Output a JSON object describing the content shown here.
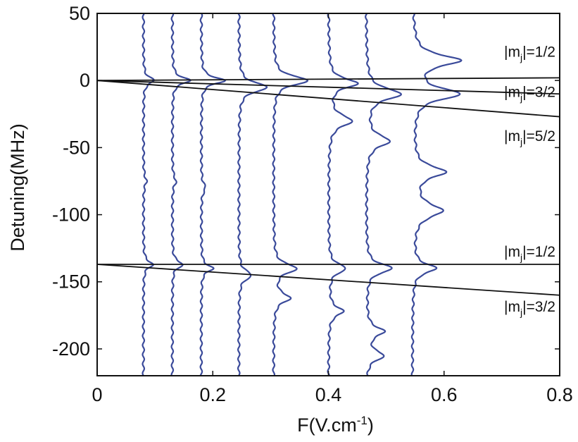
{
  "chart_data": {
    "type": "line",
    "title": "",
    "xlabel": "F(V.cm",
    "xlabel_sup": "-1",
    "xlabel_end": ")",
    "ylabel": "Detuning(MHz)",
    "xlim": [
      0,
      0.8
    ],
    "ylim": [
      -220,
      50
    ],
    "xticks": [
      "0",
      "0.2",
      "0.4",
      "0.6",
      "0.8"
    ],
    "yticks": [
      "50",
      "0",
      "-50",
      "-100",
      "-150",
      "-200"
    ],
    "grid": false,
    "trace_color": "#3a4a9a",
    "level_color": "#111111",
    "spectra": [
      {
        "baseline": 0.08,
        "peaks": [
          [
            0,
            0.018,
            3
          ],
          [
            -75,
            0.005,
            4
          ],
          [
            -137,
            0.016,
            3
          ]
        ]
      },
      {
        "baseline": 0.13,
        "peaks": [
          [
            0,
            0.03,
            3
          ],
          [
            -75,
            0.006,
            4
          ],
          [
            -137,
            0.018,
            3
          ]
        ]
      },
      {
        "baseline": 0.18,
        "peaks": [
          [
            0,
            0.04,
            3
          ],
          [
            -80,
            0.007,
            4
          ],
          [
            -140,
            0.02,
            3
          ]
        ]
      },
      {
        "baseline": 0.245,
        "peaks": [
          [
            -5,
            0.05,
            4
          ],
          [
            -145,
            0.022,
            4
          ]
        ]
      },
      {
        "baseline": 0.305,
        "peaks": [
          [
            0,
            0.06,
            4
          ],
          [
            -140,
            0.04,
            4
          ],
          [
            -162,
            0.028,
            4
          ]
        ]
      },
      {
        "baseline": 0.4,
        "peaks": [
          [
            -2,
            0.05,
            4
          ],
          [
            -30,
            0.04,
            5
          ],
          [
            -140,
            0.03,
            4
          ],
          [
            -172,
            0.025,
            4
          ]
        ]
      },
      {
        "baseline": 0.465,
        "peaks": [
          [
            -10,
            0.06,
            5
          ],
          [
            -45,
            0.04,
            5
          ],
          [
            -140,
            0.045,
            4
          ],
          [
            -187,
            0.03,
            4
          ],
          [
            -205,
            0.03,
            4
          ]
        ]
      },
      {
        "baseline": 0.545,
        "peaks": [
          [
            15,
            0.08,
            5
          ],
          [
            -10,
            0.08,
            5
          ],
          [
            -68,
            0.055,
            5
          ],
          [
            -97,
            0.05,
            6
          ],
          [
            -140,
            0.04,
            4
          ]
        ]
      }
    ],
    "level_lines": [
      {
        "points": [
          [
            0,
            0
          ],
          [
            0.8,
            2
          ]
        ]
      },
      {
        "points": [
          [
            0,
            0
          ],
          [
            0.8,
            -10
          ]
        ]
      },
      {
        "points": [
          [
            0,
            0
          ],
          [
            0.8,
            -27
          ]
        ]
      },
      {
        "points": [
          [
            0,
            -137
          ],
          [
            0.8,
            -137
          ]
        ]
      },
      {
        "points": [
          [
            0,
            -137
          ],
          [
            0.8,
            -160
          ]
        ]
      }
    ],
    "annotations": [
      {
        "pre": "|m",
        "sub": "j",
        "post": "|=1/2",
        "x": 0.8,
        "y": 22,
        "anchor": "end"
      },
      {
        "pre": "|m",
        "sub": "j",
        "post": "|=3/2",
        "x": 0.8,
        "y": -8,
        "anchor": "end"
      },
      {
        "pre": "|m",
        "sub": "j",
        "post": "|=5/2",
        "x": 0.8,
        "y": -41,
        "anchor": "end"
      },
      {
        "pre": "|m",
        "sub": "j",
        "post": "|=1/2",
        "x": 0.8,
        "y": -127,
        "anchor": "end"
      },
      {
        "pre": "|m",
        "sub": "j",
        "post": "|=3/2",
        "x": 0.8,
        "y": -168,
        "anchor": "end"
      }
    ]
  }
}
